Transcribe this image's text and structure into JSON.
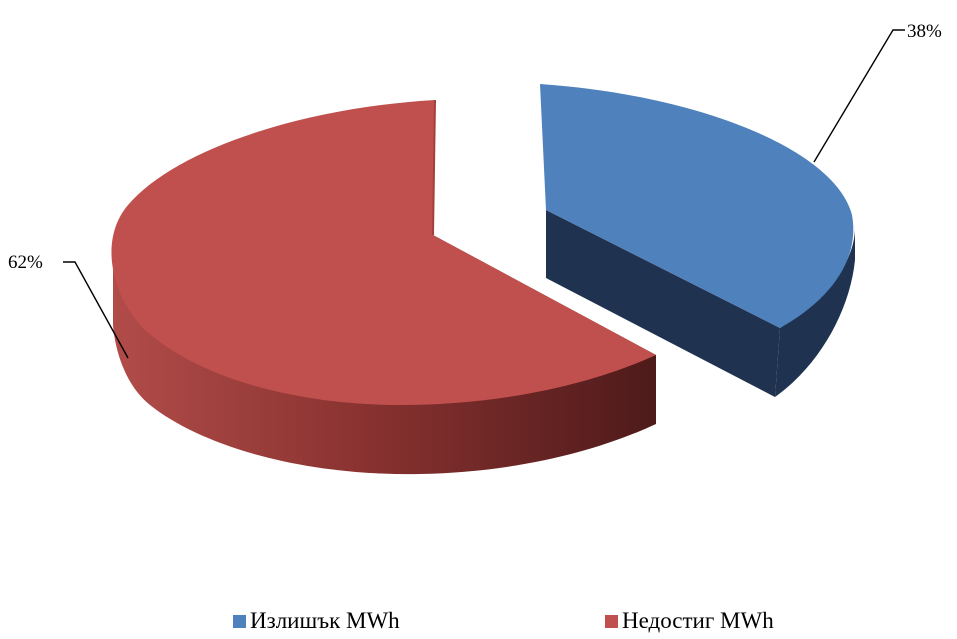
{
  "chart_data": {
    "type": "pie",
    "title": "",
    "series": [
      {
        "name": "Излишък MWh",
        "value": 38,
        "label": "38%",
        "color": "#4f81bd"
      },
      {
        "name": "Недостиг MWh",
        "value": 62,
        "label": "62%",
        "color": "#c0504d"
      }
    ],
    "legend": "bottom"
  }
}
